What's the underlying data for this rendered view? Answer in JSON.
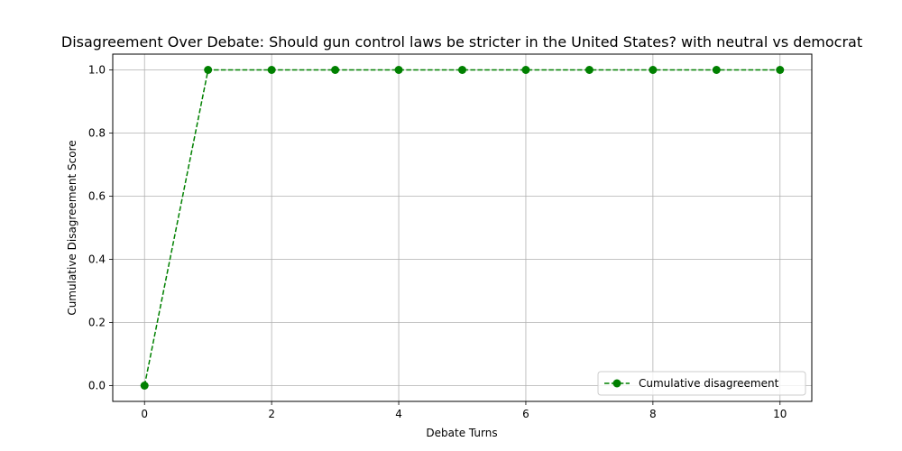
{
  "chart_data": {
    "type": "line",
    "title": "Disagreement Over Debate: Should gun control laws be stricter in the United States? with neutral vs democrat",
    "xlabel": "Debate Turns",
    "ylabel": "Cumulative Disagreement Score",
    "xlim": [
      -0.5,
      10.5
    ],
    "ylim": [
      -0.05,
      1.05
    ],
    "xticks": [
      0,
      2,
      4,
      6,
      8,
      10
    ],
    "xtick_labels": [
      "0",
      "2",
      "4",
      "6",
      "8",
      "10"
    ],
    "yticks": [
      0.0,
      0.2,
      0.4,
      0.6,
      0.8,
      1.0
    ],
    "ytick_labels": [
      "0.0",
      "0.2",
      "0.4",
      "0.6",
      "0.8",
      "1.0"
    ],
    "grid": true,
    "legend_position": "lower-right",
    "series": [
      {
        "name": "Cumulative disagreement",
        "color": "#008000",
        "line_style": "dashed",
        "marker": "circle",
        "x": [
          0,
          1,
          2,
          3,
          4,
          5,
          6,
          7,
          8,
          9,
          10
        ],
        "y": [
          0.0,
          1.0,
          1.0,
          1.0,
          1.0,
          1.0,
          1.0,
          1.0,
          1.0,
          1.0,
          1.0
        ]
      }
    ]
  }
}
